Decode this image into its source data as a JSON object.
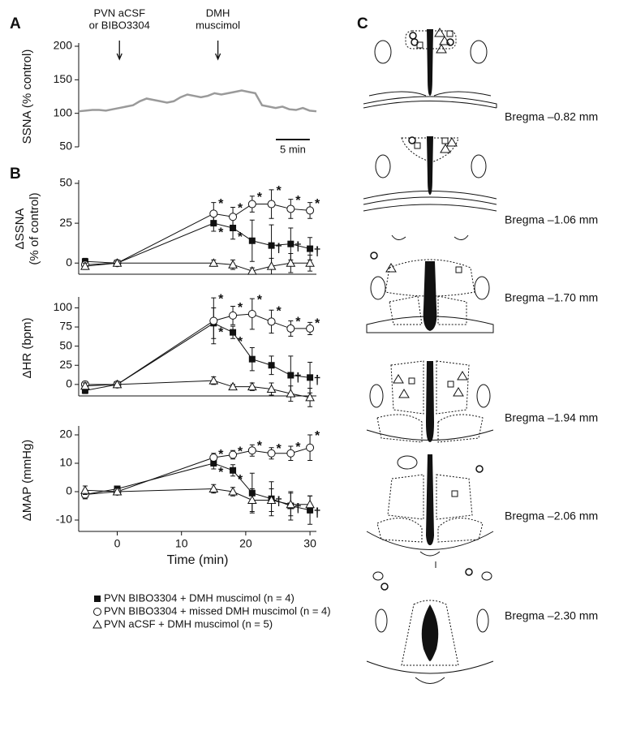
{
  "panel_labels": [
    "A",
    "B",
    "C"
  ],
  "chart_data": [
    {
      "type": "line",
      "ylabel": [
        "SSNA (% control)"
      ],
      "ylim": [
        50,
        200
      ],
      "yticks": [
        50,
        100,
        150,
        200
      ],
      "xlim": [
        -6,
        29
      ],
      "x": [
        -6,
        -5,
        -4,
        -3,
        -2,
        -1,
        0,
        1,
        2,
        3,
        4,
        5,
        6,
        7,
        8,
        9,
        10,
        11,
        12,
        13,
        14,
        15,
        16,
        17,
        18,
        19,
        20,
        21,
        22,
        23,
        24,
        25,
        26,
        27,
        28,
        29
      ],
      "series": [
        {
          "color": "#9a9a9a",
          "marker": "none",
          "values": [
            103,
            104,
            105,
            105,
            104,
            106,
            108,
            110,
            112,
            118,
            122,
            120,
            118,
            116,
            118,
            124,
            128,
            126,
            124,
            126,
            130,
            128,
            130,
            132,
            134,
            132,
            130,
            112,
            110,
            108,
            110,
            106,
            105,
            108,
            104,
            103
          ]
        }
      ],
      "annotations": [
        {
          "x": 0,
          "text": [
            "PVN aCSF",
            "or BIBO3304"
          ]
        },
        {
          "x": 14.5,
          "text": [
            "DMH",
            "muscimol"
          ]
        }
      ],
      "scalebar": {
        "label": "5 min",
        "length": 5
      }
    },
    {
      "type": "line",
      "ylabel": [
        "ΔSSNA",
        "(% of control)"
      ],
      "ylim": [
        -7,
        50
      ],
      "yticks": [
        0,
        25,
        50
      ],
      "xlim": [
        -6,
        31
      ],
      "x": [
        -5,
        0,
        15,
        18,
        21,
        24,
        27,
        30
      ],
      "series": [
        {
          "name": "PVN BIBO3304 + DMH muscimol (n = 4)",
          "marker": "square",
          "color": "#111111",
          "values": [
            1,
            0,
            25,
            22,
            14,
            11,
            12,
            9
          ],
          "errors": [
            2,
            1,
            5,
            7,
            13,
            13,
            10,
            7
          ],
          "significance": [
            null,
            null,
            "*",
            "*",
            null,
            "†",
            "†",
            "†"
          ]
        },
        {
          "name": "PVN BIBO3304 + missed DMH muscimol (n = 4)",
          "marker": "circle",
          "color": "#111111",
          "values": [
            -1,
            0,
            31,
            29,
            37,
            37,
            34,
            33
          ],
          "errors": [
            2,
            1,
            7,
            6,
            5,
            9,
            6,
            5
          ],
          "significance": [
            null,
            null,
            "*",
            "*",
            "*",
            "*",
            "*",
            "*"
          ]
        },
        {
          "name": "PVN aCSF + DMH muscimol (n = 5)",
          "marker": "triangle",
          "color": "#111111",
          "values": [
            -2,
            0,
            0,
            -1,
            -5,
            -2,
            0,
            0
          ],
          "errors": [
            2,
            1,
            2,
            3,
            2,
            5,
            6,
            5
          ],
          "significance": null
        }
      ]
    },
    {
      "type": "line",
      "ylabel": [
        "ΔHR (bpm)"
      ],
      "ylim": [
        -15,
        110
      ],
      "yticks": [
        0,
        25,
        50,
        75,
        100
      ],
      "xlim": [
        -6,
        31
      ],
      "x": [
        -5,
        0,
        15,
        18,
        21,
        24,
        27,
        30
      ],
      "series": [
        {
          "marker": "square",
          "color": "#111111",
          "values": [
            -8,
            0,
            80,
            68,
            33,
            25,
            12,
            9
          ],
          "errors": [
            4,
            2,
            20,
            8,
            15,
            12,
            25,
            20
          ],
          "significance": [
            null,
            null,
            "*",
            "*",
            null,
            null,
            "†",
            "†"
          ]
        },
        {
          "marker": "circle",
          "color": "#111111",
          "values": [
            0,
            0,
            83,
            90,
            92,
            82,
            73,
            73
          ],
          "errors": [
            4,
            2,
            30,
            12,
            20,
            15,
            10,
            8
          ],
          "significance": [
            null,
            null,
            "*",
            "*",
            "*",
            "*",
            "*",
            "*"
          ]
        },
        {
          "marker": "triangle",
          "color": "#111111",
          "values": [
            -2,
            0,
            5,
            -3,
            -3,
            -6,
            -12,
            -17
          ],
          "errors": [
            4,
            2,
            5,
            3,
            5,
            8,
            10,
            12
          ],
          "significance": null
        }
      ]
    },
    {
      "type": "line",
      "ylabel": [
        "ΔMAP (mmHg)"
      ],
      "xlabel": "Time (min)",
      "ylim": [
        -14,
        22
      ],
      "yticks": [
        -10,
        0,
        10,
        20
      ],
      "xlim": [
        -6,
        31
      ],
      "xticks": [
        0,
        10,
        20,
        30
      ],
      "x": [
        -5,
        0,
        15,
        18,
        21,
        24,
        27,
        30
      ],
      "series": [
        {
          "marker": "square",
          "color": "#111111",
          "values": [
            -1,
            1,
            10,
            7.5,
            -0.5,
            -2.5,
            -5,
            -6.5
          ],
          "errors": [
            1.5,
            0.5,
            2,
            2,
            7,
            6,
            5,
            5
          ],
          "significance": [
            null,
            null,
            "*",
            "*",
            null,
            "†",
            "†",
            "†"
          ]
        },
        {
          "marker": "circle",
          "color": "#111111",
          "values": [
            -1,
            0,
            12,
            13,
            14.5,
            13.5,
            13.5,
            15.5
          ],
          "errors": [
            1.5,
            0.5,
            1.5,
            1.5,
            2,
            2,
            2.5,
            4.5
          ],
          "significance": [
            null,
            null,
            "*",
            "*",
            "*",
            "*",
            "*",
            "*"
          ]
        },
        {
          "marker": "triangle",
          "color": "#111111",
          "values": [
            0.5,
            0,
            1,
            0,
            -3,
            -3,
            -4.5,
            -4.5
          ],
          "errors": [
            1.5,
            0.5,
            1.5,
            1.5,
            4,
            4,
            4,
            3
          ],
          "significance": null
        }
      ]
    }
  ],
  "sections": [
    {
      "label": "Bregma –0.82 mm"
    },
    {
      "label": "Bregma –1.06 mm"
    },
    {
      "label": "Bregma –1.70 mm"
    },
    {
      "label": "Bregma –1.94 mm"
    },
    {
      "label": "Bregma –2.06 mm"
    },
    {
      "label": "Bregma –2.30 mm"
    }
  ]
}
